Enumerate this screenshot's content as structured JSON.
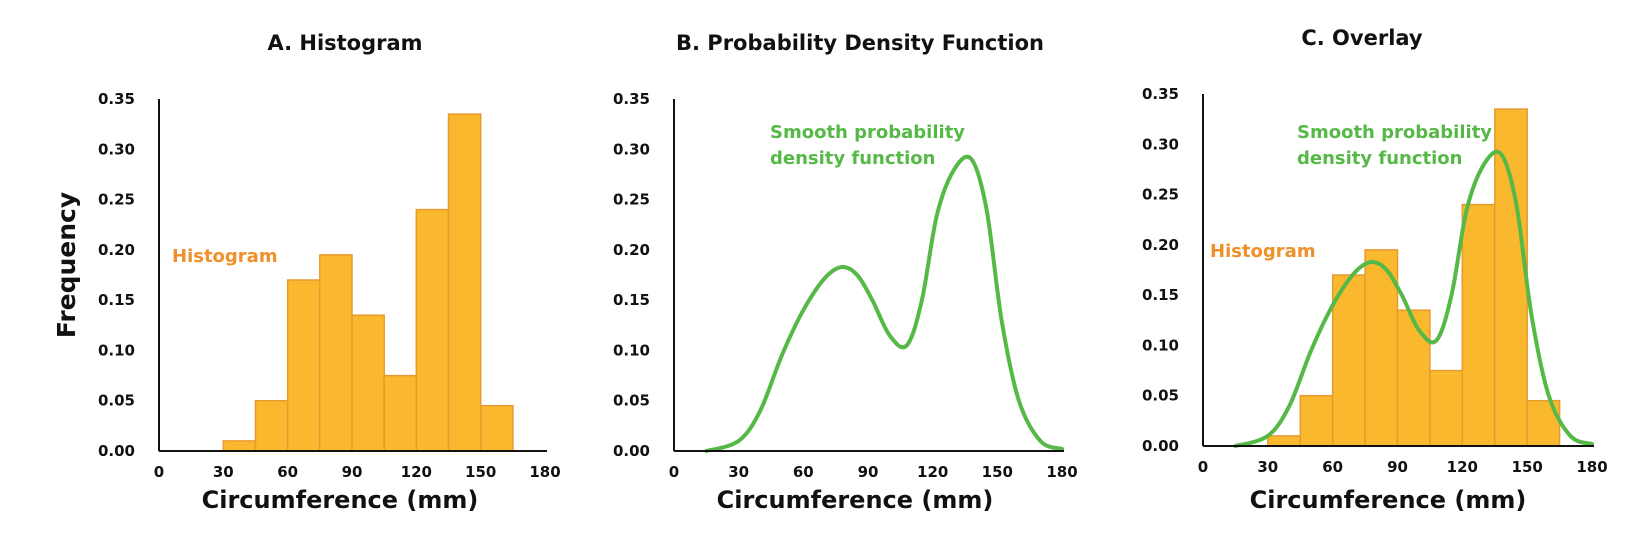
{
  "colors": {
    "histogram": "#F9B82D",
    "histogram_edge": "#E89A2F",
    "histogram_label": "#F0902A",
    "density": "#56B947",
    "text": "#111111"
  },
  "shared_ylabel": "Frequency",
  "chart_data": [
    {
      "type": "bar",
      "title": "A. Histogram",
      "xlabel": "Circumference (mm)",
      "ylabel": "Frequency",
      "xlim": [
        0,
        180
      ],
      "ylim": [
        0,
        0.35
      ],
      "xticks": [
        "0",
        "30",
        "60",
        "90",
        "120",
        "150",
        "180"
      ],
      "yticks": [
        "0.00",
        "0.05",
        "0.10",
        "0.15",
        "0.20",
        "0.25",
        "0.30",
        "0.35"
      ],
      "annotations": [
        "Histogram"
      ],
      "bins": [
        {
          "x0": 30,
          "x1": 45,
          "value": 0.01
        },
        {
          "x0": 45,
          "x1": 60,
          "value": 0.05
        },
        {
          "x0": 60,
          "x1": 75,
          "value": 0.17
        },
        {
          "x0": 75,
          "x1": 90,
          "value": 0.195
        },
        {
          "x0": 90,
          "x1": 105,
          "value": 0.135
        },
        {
          "x0": 105,
          "x1": 120,
          "value": 0.075
        },
        {
          "x0": 120,
          "x1": 135,
          "value": 0.24
        },
        {
          "x0": 135,
          "x1": 150,
          "value": 0.335
        },
        {
          "x0": 150,
          "x1": 165,
          "value": 0.045
        }
      ]
    },
    {
      "type": "line",
      "title": "B. Probability Density Function",
      "xlabel": "Circumference (mm)",
      "xlim": [
        0,
        180
      ],
      "ylim": [
        0,
        0.35
      ],
      "xticks": [
        "0",
        "30",
        "60",
        "90",
        "120",
        "150",
        "180"
      ],
      "yticks": [
        "0.00",
        "0.05",
        "0.10",
        "0.15",
        "0.20",
        "0.25",
        "0.30",
        "0.35"
      ],
      "annotations": [
        "Smooth probability",
        "density function"
      ],
      "series": [
        {
          "x": [
            15,
            30,
            40,
            50,
            60,
            70,
            78,
            85,
            92,
            100,
            108,
            115,
            122,
            130,
            138,
            145,
            152,
            160,
            170,
            180
          ],
          "y": [
            0.0,
            0.01,
            0.04,
            0.095,
            0.14,
            0.172,
            0.183,
            0.175,
            0.15,
            0.115,
            0.105,
            0.15,
            0.235,
            0.28,
            0.29,
            0.24,
            0.13,
            0.05,
            0.01,
            0.002
          ]
        }
      ]
    },
    {
      "type": "bar",
      "title": "C. Overlay",
      "xlabel": "Circumference (mm)",
      "xlim": [
        0,
        180
      ],
      "ylim": [
        0,
        0.35
      ],
      "xticks": [
        "0",
        "30",
        "60",
        "90",
        "120",
        "150",
        "180"
      ],
      "yticks": [
        "0.00",
        "0.05",
        "0.10",
        "0.15",
        "0.20",
        "0.25",
        "0.30",
        "0.35"
      ],
      "annotations": [
        "Histogram",
        "Smooth probability",
        "density function"
      ],
      "bins": [
        {
          "x0": 30,
          "x1": 45,
          "value": 0.01
        },
        {
          "x0": 45,
          "x1": 60,
          "value": 0.05
        },
        {
          "x0": 60,
          "x1": 75,
          "value": 0.17
        },
        {
          "x0": 75,
          "x1": 90,
          "value": 0.195
        },
        {
          "x0": 90,
          "x1": 105,
          "value": 0.135
        },
        {
          "x0": 105,
          "x1": 120,
          "value": 0.075
        },
        {
          "x0": 120,
          "x1": 135,
          "value": 0.24
        },
        {
          "x0": 135,
          "x1": 150,
          "value": 0.335
        },
        {
          "x0": 150,
          "x1": 165,
          "value": 0.045
        }
      ],
      "series": [
        {
          "x": [
            15,
            30,
            40,
            50,
            60,
            70,
            78,
            85,
            92,
            100,
            108,
            115,
            122,
            130,
            138,
            145,
            152,
            160,
            170,
            180
          ],
          "y": [
            0.0,
            0.01,
            0.04,
            0.095,
            0.14,
            0.172,
            0.183,
            0.175,
            0.15,
            0.115,
            0.105,
            0.15,
            0.235,
            0.28,
            0.29,
            0.24,
            0.13,
            0.05,
            0.01,
            0.002
          ]
        }
      ]
    }
  ]
}
